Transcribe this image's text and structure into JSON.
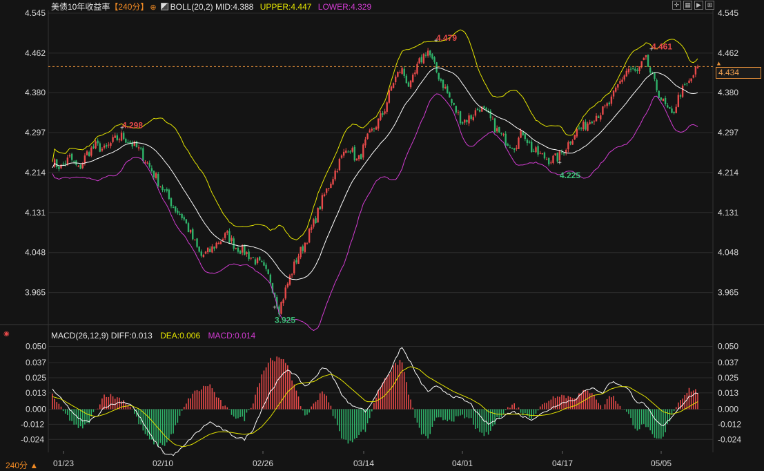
{
  "header": {
    "instrument": "美债10年收益率",
    "period_tag": "【240分】",
    "period_icon": "circle-plus-icon",
    "boll_label": "BOLL(20,2)",
    "mid": "MID:4.388",
    "upper": "UPPER:4.447",
    "lower": "LOWER:4.329"
  },
  "macd_header": {
    "label": "MACD(26,12,9)",
    "diff": "DIFF:0.013",
    "dea": "DEA:0.006",
    "macd": "MACD:0.014"
  },
  "footer": {
    "period": "240分 ▲"
  },
  "price_box": "4.434",
  "colors": {
    "up": "#e84a4a",
    "down": "#2fb36a",
    "upper": "#e6e600",
    "lower": "#d23cd2",
    "mid": "#ffffff",
    "dea": "#e6e600",
    "grid": "#2c2c2c"
  },
  "chart_data": [
    {
      "type": "candlestick",
      "title": "美债10年收益率",
      "indicator": "BOLL(20,2)",
      "ylim": [
        3.93,
        4.545
      ],
      "y_ticks": [
        "4.545",
        "4.462",
        "4.380",
        "4.297",
        "4.214",
        "4.131",
        "4.048",
        "3.965"
      ],
      "x_labels": [
        "01/23",
        "02/10",
        "02/26",
        "03/14",
        "04/01",
        "04/17",
        "05/05"
      ],
      "current_value": 4.434,
      "annotations": [
        {
          "label": "4.298",
          "type": "high"
        },
        {
          "label": "3.925",
          "type": "low"
        },
        {
          "label": "4.479",
          "type": "high"
        },
        {
          "label": "4.225",
          "type": "low"
        },
        {
          "label": "4.461",
          "type": "high"
        }
      ],
      "close_path": [
        4.235,
        4.225,
        4.245,
        4.22,
        4.255,
        4.27,
        4.26,
        4.28,
        4.29,
        4.275,
        4.26,
        4.23,
        4.2,
        4.17,
        4.14,
        4.12,
        4.08,
        4.04,
        4.05,
        4.07,
        4.085,
        4.06,
        4.05,
        4.035,
        4.02,
        3.99,
        3.93,
        3.985,
        4.035,
        4.07,
        4.11,
        4.16,
        4.2,
        4.24,
        4.27,
        4.235,
        4.28,
        4.31,
        4.34,
        4.4,
        4.43,
        4.39,
        4.44,
        4.47,
        4.425,
        4.39,
        4.35,
        4.32,
        4.33,
        4.35,
        4.33,
        4.3,
        4.28,
        4.27,
        4.3,
        4.26,
        4.25,
        4.24,
        4.245,
        4.27,
        4.3,
        4.31,
        4.33,
        4.34,
        4.36,
        4.4,
        4.43,
        4.42,
        4.45,
        4.4,
        4.36,
        4.33,
        4.38,
        4.4,
        4.434
      ],
      "series": [
        {
          "name": "MID",
          "value": 4.388
        },
        {
          "name": "UPPER",
          "value": 4.447
        },
        {
          "name": "LOWER",
          "value": 4.329
        }
      ]
    },
    {
      "type": "bar+line",
      "indicator": "MACD(26,12,9)",
      "ylim": [
        -0.031,
        0.053
      ],
      "y_ticks": [
        "0.050",
        "0.037",
        "0.025",
        "0.013",
        "0.000",
        "-0.012",
        "-0.024"
      ],
      "diff_path": [
        0.016,
        0.008,
        0.0,
        -0.008,
        -0.01,
        -0.006,
        0.002,
        0.004,
        0.006,
        0.004,
        -0.006,
        -0.018,
        -0.028,
        -0.036,
        -0.036,
        -0.03,
        -0.022,
        -0.016,
        -0.01,
        -0.014,
        -0.018,
        -0.022,
        -0.024,
        -0.016,
        0.0,
        0.014,
        0.024,
        0.032,
        0.026,
        0.018,
        0.024,
        0.034,
        0.028,
        0.014,
        0.004,
        0.002,
        -0.002,
        0.01,
        0.022,
        0.034,
        0.05,
        0.038,
        0.024,
        0.014,
        0.018,
        0.014,
        0.01,
        0.008,
        0.004,
        -0.006,
        -0.012,
        -0.008,
        -0.004,
        -0.002,
        -0.006,
        -0.008,
        -0.004,
        0.0,
        0.004,
        0.006,
        0.008,
        0.014,
        0.018,
        0.012,
        0.022,
        0.02,
        0.016,
        0.006,
        0.004,
        -0.008,
        -0.014,
        -0.006,
        0.002,
        0.01,
        0.013
      ],
      "dea_path": [
        0.01,
        0.008,
        0.004,
        0.0,
        -0.004,
        -0.006,
        -0.004,
        -0.001,
        0.002,
        0.003,
        0.0,
        -0.006,
        -0.014,
        -0.022,
        -0.028,
        -0.03,
        -0.028,
        -0.024,
        -0.02,
        -0.018,
        -0.018,
        -0.019,
        -0.02,
        -0.019,
        -0.014,
        -0.006,
        0.004,
        0.014,
        0.02,
        0.021,
        0.022,
        0.026,
        0.028,
        0.024,
        0.018,
        0.012,
        0.006,
        0.006,
        0.01,
        0.018,
        0.03,
        0.034,
        0.032,
        0.026,
        0.022,
        0.018,
        0.014,
        0.011,
        0.008,
        0.004,
        -0.002,
        -0.004,
        -0.004,
        -0.004,
        -0.004,
        -0.005,
        -0.005,
        -0.004,
        -0.002,
        0.001,
        0.003,
        0.007,
        0.011,
        0.012,
        0.016,
        0.018,
        0.018,
        0.014,
        0.01,
        0.004,
        -0.002,
        -0.004,
        -0.002,
        0.002,
        0.006
      ],
      "series": [
        {
          "name": "DIFF",
          "value": 0.013
        },
        {
          "name": "DEA",
          "value": 0.006
        },
        {
          "name": "MACD",
          "value": 0.014
        }
      ]
    }
  ]
}
